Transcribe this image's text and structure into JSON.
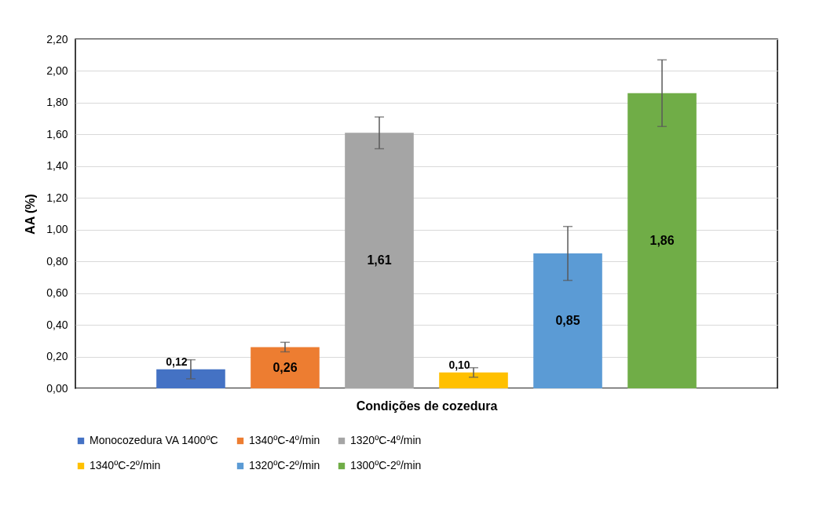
{
  "chart_data": {
    "type": "bar",
    "xlabel": "Condições de cozedura",
    "ylabel": "AA (%)",
    "categories": [
      null
    ],
    "series": [
      {
        "name": "Monocozedura VA 1400ºC",
        "color": "#4472c4",
        "values": [
          0.12
        ],
        "errors": [
          0.06
        ],
        "value_labels": [
          "0,12"
        ]
      },
      {
        "name": "1340ºC-4º/min",
        "color": "#ed7d31",
        "values": [
          0.26
        ],
        "errors": [
          0.03
        ],
        "value_labels": [
          "0,26"
        ]
      },
      {
        "name": "1320ºC-4º/min",
        "color": "#a5a5a5",
        "values": [
          1.61
        ],
        "errors": [
          0.1
        ],
        "value_labels": [
          "1,61"
        ]
      },
      {
        "name": "1340ºC-2º/min",
        "color": "#ffc000",
        "values": [
          0.1
        ],
        "errors": [
          0.03
        ],
        "value_labels": [
          "0,10"
        ]
      },
      {
        "name": "1320ºC-2º/min",
        "color": "#5b9bd5",
        "values": [
          0.85
        ],
        "errors": [
          0.17
        ],
        "value_labels": [
          "0,85"
        ]
      },
      {
        "name": "1300ºC-2º/min",
        "color": "#70ad47",
        "values": [
          1.86
        ],
        "errors": [
          0.21
        ],
        "value_labels": [
          "1,86"
        ]
      }
    ],
    "ylim": [
      0,
      2.2
    ],
    "yticks": [
      {
        "value": 0,
        "label": "0,00"
      },
      {
        "value": 0.2,
        "label": "0,20"
      },
      {
        "value": 0.4,
        "label": "0,40"
      },
      {
        "value": 0.6,
        "label": "0,60"
      },
      {
        "value": 0.8,
        "label": "0,80"
      },
      {
        "value": 1,
        "label": "1,00"
      },
      {
        "value": 1.2,
        "label": "1,20"
      },
      {
        "value": 1.4,
        "label": "1,40"
      },
      {
        "value": 1.6,
        "label": "1,60"
      },
      {
        "value": 1.8,
        "label": "1,80"
      },
      {
        "value": 2,
        "label": "2,00"
      },
      {
        "value": 2.2,
        "label": "2,20"
      }
    ],
    "grid": "y",
    "legend": "bottom"
  }
}
